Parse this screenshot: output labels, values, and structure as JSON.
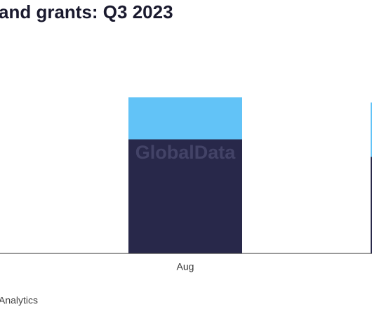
{
  "chart_data": {
    "type": "stacked-bar",
    "title": "and grants: Q3 2023",
    "categories": [
      "Aug",
      null
    ],
    "series": [
      {
        "color": "#28284a",
        "values": [
          65,
          55
        ]
      },
      {
        "color": "#62c3f7",
        "values": [
          24,
          31
        ]
      }
    ],
    "ylim": [
      0,
      100
    ],
    "watermark": "GlobalData",
    "source": "Analytics"
  }
}
